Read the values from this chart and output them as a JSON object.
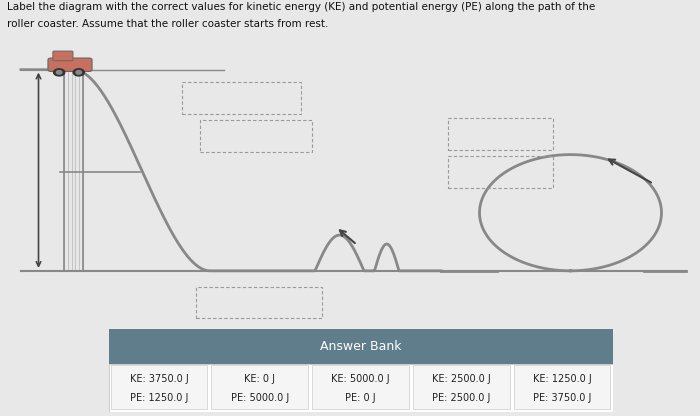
{
  "title_line1": "Label the diagram with the correct values for kinetic energy (KE) and potential energy (PE) along the path of the",
  "title_line2": "roller coaster. Assume that the roller coaster starts from rest.",
  "bg_color": "#e8e8e8",
  "track_color": "#888888",
  "track_lw": 2.0,
  "answer_bank_header": "Answer Bank",
  "answer_bank_bg": "#607d8b",
  "answer_bank_cell_bg": "#f5f5f5",
  "answer_items": [
    {
      "ke": "KE: 3750.0 J",
      "pe": "PE: 1250.0 J"
    },
    {
      "ke": "KE: 0 J",
      "pe": "PE: 5000.0 J"
    },
    {
      "ke": "KE: 5000.0 J",
      "pe": "PE: 0 J"
    },
    {
      "ke": "KE: 2500.0 J",
      "pe": "PE: 2500.0 J"
    },
    {
      "ke": "KE: 1250.0 J",
      "pe": "PE: 3750.0 J"
    }
  ],
  "dashed_box_color": "#999999",
  "arrow_color": "#444444",
  "train_color": "#c87060",
  "train_shadow_color": "#555555",
  "ground_color": "#888888",
  "support_color": "#aaaaaa"
}
